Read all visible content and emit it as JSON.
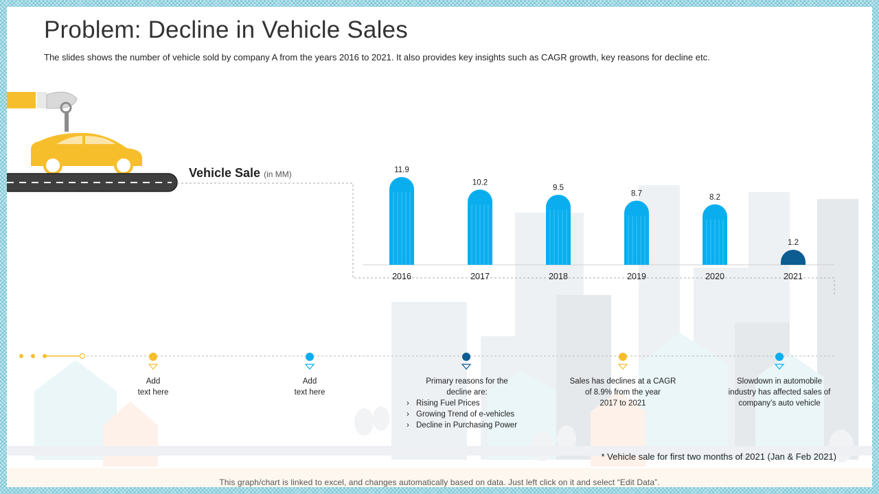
{
  "title": "Problem: Decline in Vehicle Sales",
  "subtitle": "The slides shows the number of vehicle sold by company A from the years 2016 to 2021.  It also provides key insights such as CAGR growth, key reasons for decline etc.",
  "chart_data": {
    "type": "bar",
    "title": "Vehicle Sale",
    "unit_label": "(in MM)",
    "categories": [
      "2016",
      "2017",
      "2018",
      "2019",
      "2020",
      "2021"
    ],
    "values": [
      11.9,
      10.2,
      9.5,
      8.7,
      8.2,
      1.2
    ],
    "ylim": [
      0,
      11.9
    ],
    "xlabel": "",
    "ylabel": "",
    "grid": false,
    "colors": [
      "#0aaeef",
      "#0aaeef",
      "#0aaeef",
      "#0aaeef",
      "#0aaeef",
      "#0d5c91"
    ]
  },
  "timeline": {
    "items": [
      {
        "text_lines": [
          "Add",
          "text here"
        ],
        "color": "#f7be2c"
      },
      {
        "text_lines": [
          "Add",
          "text here"
        ],
        "color": "#0aaeef"
      },
      {
        "heading": "Primary reasons for the decline are:",
        "bullets": [
          "Rising Fuel Prices",
          "Growing Trend of e-vehicles",
          "Decline in Purchasing Power"
        ],
        "color": "#0d5c91"
      },
      {
        "text_lines": [
          "Sales has declines at a CAGR",
          "of 8.9% from the year",
          "2017 to 2021"
        ],
        "color": "#f7be2c"
      },
      {
        "text_lines": [
          "Slowdown in automobile",
          "industry has affected sales of",
          "company’s auto vehicle"
        ],
        "color": "#0aaeef"
      }
    ]
  },
  "footnote": "* Vehicle sale for first two months of 2021 (Jan & Feb 2021)",
  "bottom_note": "This graph/chart is linked to excel, and changes automatically based on data. Just left click on it and select “Edit Data”.",
  "colors": {
    "accent_yellow": "#f7be2c",
    "accent_blue": "#0aaeef",
    "dark_blue": "#0d5c91"
  }
}
